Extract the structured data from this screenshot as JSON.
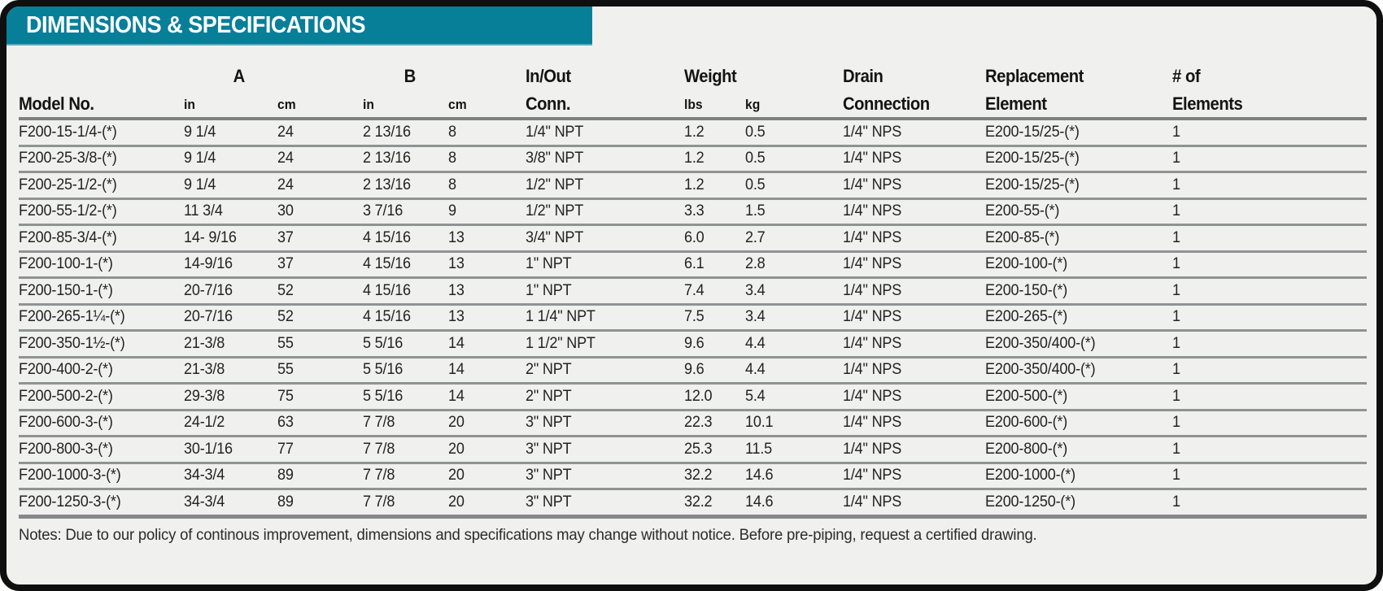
{
  "panel_title": "DIMENSIONS & SPECIFICATIONS",
  "colors": {
    "banner_teal": "#087f99",
    "card_background": "#f0f0ee",
    "card_border": "#0f0f0f",
    "separator_gray": "#909394"
  },
  "table": {
    "header": {
      "model": "Model No.",
      "group_a": "A",
      "group_b": "B",
      "inout_line1": "In/Out",
      "inout_line2": "Conn.",
      "weight": "Weight",
      "unit_in_a": "in",
      "unit_cm_a": "cm",
      "unit_in_b": "in",
      "unit_cm_b": "cm",
      "unit_lbs": "lbs",
      "unit_kg": "kg",
      "drain_line1": "Drain",
      "drain_line2": "Connection",
      "replacement_line1": "Replacement",
      "replacement_line2": "Element",
      "elements_line1": "# of",
      "elements_line2": "Elements"
    },
    "column_order": [
      "model",
      "a_in",
      "a_cm",
      "b_in",
      "b_cm",
      "conn",
      "lbs",
      "kg",
      "drain",
      "element",
      "qty"
    ],
    "rows": [
      {
        "model": "F200-15-1/4-(*)",
        "a_in": "9 1/4",
        "a_cm": "24",
        "b_in": "2 13/16",
        "b_cm": "8",
        "conn": "1/4\" NPT",
        "lbs": "1.2",
        "kg": "0.5",
        "drain": "1/4\" NPS",
        "element": "E200-15/25-(*)",
        "qty": "1"
      },
      {
        "model": "F200-25-3/8-(*)",
        "a_in": "9 1/4",
        "a_cm": "24",
        "b_in": "2 13/16",
        "b_cm": "8",
        "conn": "3/8\" NPT",
        "lbs": "1.2",
        "kg": "0.5",
        "drain": "1/4\" NPS",
        "element": "E200-15/25-(*)",
        "qty": "1"
      },
      {
        "model": "F200-25-1/2-(*)",
        "a_in": "9 1/4",
        "a_cm": "24",
        "b_in": "2 13/16",
        "b_cm": "8",
        "conn": "1/2\" NPT",
        "lbs": "1.2",
        "kg": "0.5",
        "drain": "1/4\" NPS",
        "element": "E200-15/25-(*)",
        "qty": "1"
      },
      {
        "model": "F200-55-1/2-(*)",
        "a_in": "11 3/4",
        "a_cm": "30",
        "b_in": "3 7/16",
        "b_cm": "9",
        "conn": "1/2\" NPT",
        "lbs": "3.3",
        "kg": "1.5",
        "drain": "1/4\" NPS",
        "element": "E200-55-(*)",
        "qty": "1"
      },
      {
        "model": "F200-85-3/4-(*)",
        "a_in": "14- 9/16",
        "a_cm": "37",
        "b_in": "4 15/16",
        "b_cm": "13",
        "conn": "3/4\" NPT",
        "lbs": "6.0",
        "kg": "2.7",
        "drain": "1/4\" NPS",
        "element": "E200-85-(*)",
        "qty": "1"
      },
      {
        "model": "F200-100-1-(*)",
        "a_in": "14-9/16",
        "a_cm": "37",
        "b_in": "4 15/16",
        "b_cm": "13",
        "conn": "1\" NPT",
        "lbs": "6.1",
        "kg": "2.8",
        "drain": "1/4\" NPS",
        "element": "E200-100-(*)",
        "qty": "1"
      },
      {
        "model": "F200-150-1-(*)",
        "a_in": "20-7/16",
        "a_cm": "52",
        "b_in": "4 15/16",
        "b_cm": "13",
        "conn": "1\" NPT",
        "lbs": "7.4",
        "kg": "3.4",
        "drain": "1/4\" NPS",
        "element": "E200-150-(*)",
        "qty": "1"
      },
      {
        "model": "F200-265-1¼-(*)",
        "a_in": "20-7/16",
        "a_cm": "52",
        "b_in": "4 15/16",
        "b_cm": "13",
        "conn": "1 1/4\" NPT",
        "lbs": "7.5",
        "kg": "3.4",
        "drain": "1/4\" NPS",
        "element": "E200-265-(*)",
        "qty": "1"
      },
      {
        "model": "F200-350-1½-(*)",
        "a_in": "21-3/8",
        "a_cm": "55",
        "b_in": "5 5/16",
        "b_cm": "14",
        "conn": "1 1/2\" NPT",
        "lbs": "9.6",
        "kg": "4.4",
        "drain": "1/4\" NPS",
        "element": "E200-350/400-(*)",
        "qty": "1"
      },
      {
        "model": "F200-400-2-(*)",
        "a_in": "21-3/8",
        "a_cm": "55",
        "b_in": "5 5/16",
        "b_cm": "14",
        "conn": "2\" NPT",
        "lbs": "9.6",
        "kg": "4.4",
        "drain": "1/4\" NPS",
        "element": "E200-350/400-(*)",
        "qty": "1"
      },
      {
        "model": "F200-500-2-(*)",
        "a_in": "29-3/8",
        "a_cm": "75",
        "b_in": "5 5/16",
        "b_cm": "14",
        "conn": "2\" NPT",
        "lbs": "12.0",
        "kg": "5.4",
        "drain": "1/4\" NPS",
        "element": "E200-500-(*)",
        "qty": "1"
      },
      {
        "model": "F200-600-3-(*)",
        "a_in": "24-1/2",
        "a_cm": "63",
        "b_in": "7 7/8",
        "b_cm": "20",
        "conn": "3\" NPT",
        "lbs": "22.3",
        "kg": "10.1",
        "drain": "1/4\" NPS",
        "element": "E200-600-(*)",
        "qty": "1"
      },
      {
        "model": "F200-800-3-(*)",
        "a_in": "30-1/16",
        "a_cm": "77",
        "b_in": "7 7/8",
        "b_cm": "20",
        "conn": "3\" NPT",
        "lbs": "25.3",
        "kg": "11.5",
        "drain": "1/4\" NPS",
        "element": "E200-800-(*)",
        "qty": "1"
      },
      {
        "model": "F200-1000-3-(*)",
        "a_in": "34-3/4",
        "a_cm": "89",
        "b_in": "7 7/8",
        "b_cm": "20",
        "conn": "3\" NPT",
        "lbs": "32.2",
        "kg": "14.6",
        "drain": "1/4\" NPS",
        "element": "E200-1000-(*)",
        "qty": "1"
      },
      {
        "model": "F200-1250-3-(*)",
        "a_in": "34-3/4",
        "a_cm": "89",
        "b_in": "7 7/8",
        "b_cm": "20",
        "conn": "3\" NPT",
        "lbs": "32.2",
        "kg": "14.6",
        "drain": "1/4\" NPS",
        "element": "E200-1250-(*)",
        "qty": "1"
      }
    ]
  },
  "notes": "Notes: Due to our policy of continous improvement, dimensions and specifications may change without notice. Before pre-piping, request a certified drawing."
}
